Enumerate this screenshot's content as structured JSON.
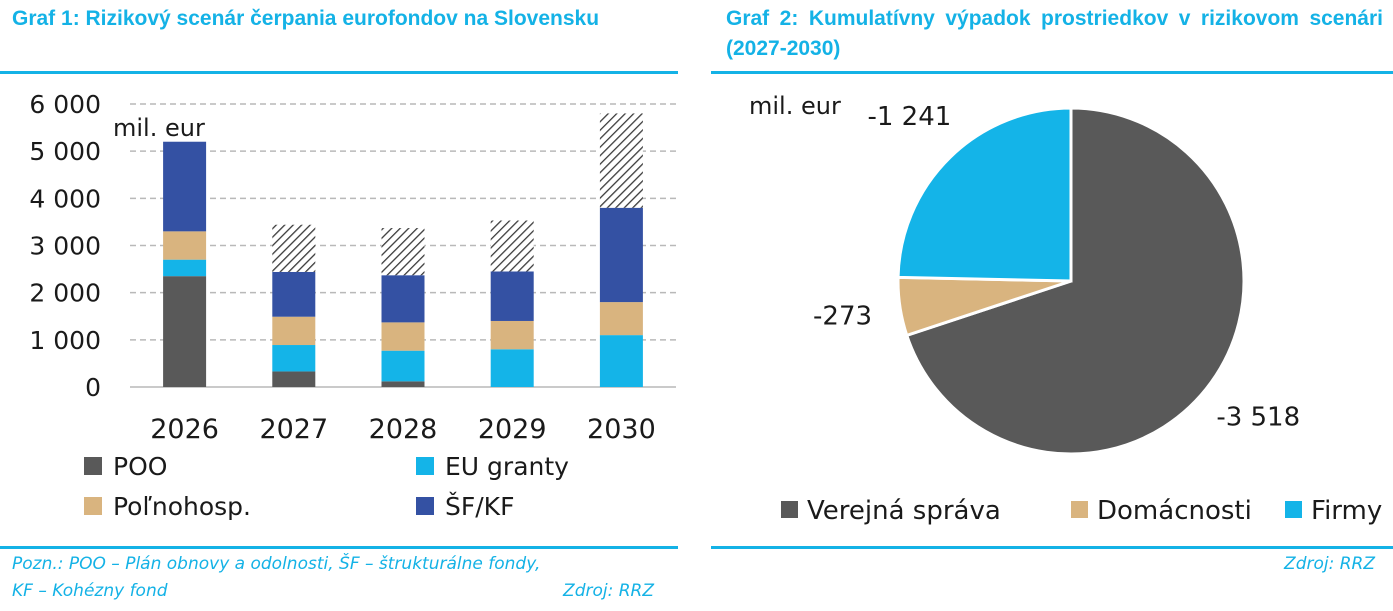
{
  "chart_data": [
    {
      "type": "bar",
      "stacked": true,
      "title": "Graf 1: Rizikový scenár čerpania eurofondov na Slovensku",
      "unit_label": "mil. eur",
      "categories": [
        "2026",
        "2027",
        "2028",
        "2029",
        "2030"
      ],
      "ylim": [
        0,
        6000
      ],
      "yticks": [
        "0",
        "1 000",
        "2 000",
        "3 000",
        "4 000",
        "5 000",
        "6 000"
      ],
      "grid": true,
      "series": [
        {
          "name": "POO",
          "color": "#595959",
          "values": [
            2350,
            330,
            120,
            0,
            0
          ]
        },
        {
          "name": "EU granty",
          "color": "#14b4e8",
          "values": [
            350,
            560,
            650,
            800,
            1100
          ]
        },
        {
          "name": "Poľnohosp.",
          "color": "#d9b47f",
          "values": [
            600,
            600,
            600,
            600,
            700
          ]
        },
        {
          "name": "ŠF/KF",
          "color": "#3451a3",
          "values": [
            1900,
            950,
            1000,
            1050,
            2000
          ]
        },
        {
          "name": "",
          "pattern": "hatch",
          "values": [
            0,
            1000,
            1000,
            1080,
            2000
          ]
        }
      ],
      "legend": [
        "POO",
        "EU granty",
        "Poľnohosp.",
        "ŠF/KF"
      ],
      "legend_position": "bottom",
      "note": {
        "line1": "Pozn.: POO – Plán obnovy a odolnosti, ŠF – štrukturálne fondy,",
        "line2": "KF – Kohézny fond",
        "source": "Zdroj: RRZ"
      }
    },
    {
      "type": "pie",
      "title": "Graf 2: Kumulatívny výpadok prostriedkov v rizikovom scenári (2027-2030)",
      "unit_label": "mil. eur",
      "slices": [
        {
          "name": "Verejná správa",
          "value": -3518,
          "label": "-3 518",
          "color": "#595959"
        },
        {
          "name": "Domácnosti",
          "value": -273,
          "label": "-273",
          "color": "#d9b47f"
        },
        {
          "name": "Firmy",
          "value": -1241,
          "label": "-1 241",
          "color": "#14b4e8"
        }
      ],
      "legend_position": "bottom",
      "note": {
        "source": "Zdroj: RRZ"
      }
    }
  ]
}
